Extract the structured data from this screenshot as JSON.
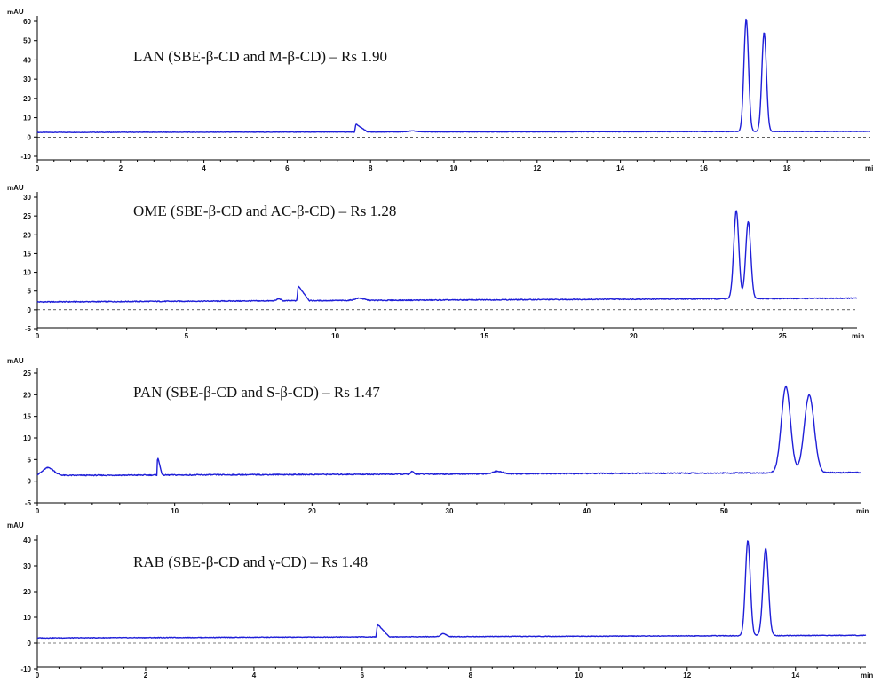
{
  "colors": {
    "trace": "#1f1fd8",
    "axis": "#000000"
  },
  "chart_data": [
    {
      "type": "line",
      "title": "LAN (SBE-β-CD and M-β-CD) – Rs 1.90",
      "ylabel": "mAU",
      "xlabel": "min",
      "xlim": [
        0,
        20
      ],
      "ylim": [
        -10,
        65
      ],
      "xticks": [
        0,
        2,
        4,
        6,
        8,
        10,
        12,
        14,
        16,
        18
      ],
      "yticks": [
        -10,
        0,
        10,
        20,
        30,
        40,
        50,
        60
      ],
      "baseline": {
        "start": 2.4,
        "end": 2.9
      },
      "peaks": [
        {
          "rt": 7.65,
          "height": 4.2,
          "kind": "sharkfin",
          "width": 0.28
        },
        {
          "rt": 9.0,
          "height": 0.5,
          "kind": "gauss",
          "width": 0.12
        },
        {
          "rt": 17.02,
          "height": 58.5,
          "kind": "gauss",
          "width": 0.055
        },
        {
          "rt": 17.45,
          "height": 51.5,
          "kind": "gauss",
          "width": 0.055
        }
      ],
      "grid": false
    },
    {
      "type": "line",
      "title": "OME (SBE-β-CD and AC-β-CD) – Rs 1.28",
      "ylabel": "mAU",
      "xlabel": "min",
      "xlim": [
        0,
        27.5
      ],
      "ylim": [
        -5,
        30
      ],
      "xticks": [
        0,
        5,
        10,
        15,
        20,
        25
      ],
      "yticks": [
        -5,
        0,
        5,
        10,
        15,
        20,
        25,
        30
      ],
      "baseline": {
        "start": 2.1,
        "end": 3.1
      },
      "peaks": [
        {
          "rt": 8.1,
          "height": 0.6,
          "kind": "gauss",
          "width": 0.06
        },
        {
          "rt": 8.75,
          "height": 4.0,
          "kind": "sharkfin",
          "width": 0.38
        },
        {
          "rt": 10.8,
          "height": 0.6,
          "kind": "gauss",
          "width": 0.15
        },
        {
          "rt": 23.45,
          "height": 23.5,
          "kind": "gauss",
          "width": 0.085
        },
        {
          "rt": 23.85,
          "height": 20.5,
          "kind": "gauss",
          "width": 0.085
        }
      ],
      "grid": false
    },
    {
      "type": "line",
      "title": "PAN (SBE-β-CD and S-β-CD) – Rs 1.47",
      "ylabel": "mAU",
      "xlabel": "min",
      "xlim": [
        0,
        60
      ],
      "ylim": [
        -5,
        27
      ],
      "xticks": [
        0,
        10,
        20,
        30,
        40,
        50
      ],
      "yticks": [
        -5,
        0,
        5,
        10,
        15,
        20,
        25
      ],
      "baseline": {
        "start": 1.3,
        "end": 2.0
      },
      "peaks": [
        {
          "rt": 0.8,
          "height": 1.8,
          "kind": "gauss",
          "width": 0.4
        },
        {
          "rt": 8.75,
          "height": 4.3,
          "kind": "sharkfin",
          "width": 0.35
        },
        {
          "rt": 27.3,
          "height": 0.6,
          "kind": "gauss",
          "width": 0.1
        },
        {
          "rt": 33.5,
          "height": 0.6,
          "kind": "gauss",
          "width": 0.35
        },
        {
          "rt": 54.5,
          "height": 20.0,
          "kind": "gauss",
          "width": 0.33
        },
        {
          "rt": 56.2,
          "height": 18.0,
          "kind": "gauss",
          "width": 0.36
        }
      ],
      "grid": false
    },
    {
      "type": "line",
      "title": "RAB (SBE-β-CD and γ-CD) – Rs 1.48",
      "ylabel": "mAU",
      "xlabel": "min",
      "xlim": [
        0,
        15.3
      ],
      "ylim": [
        -10,
        45
      ],
      "xticks": [
        0,
        2,
        4,
        6,
        8,
        10,
        12,
        14
      ],
      "yticks": [
        -10,
        0,
        10,
        20,
        30,
        40
      ],
      "baseline": {
        "start": 2.0,
        "end": 3.0
      },
      "peaks": [
        {
          "rt": 6.28,
          "height": 5.0,
          "kind": "sharkfin",
          "width": 0.22
        },
        {
          "rt": 7.5,
          "height": 1.2,
          "kind": "gauss",
          "width": 0.05
        },
        {
          "rt": 13.12,
          "height": 37.0,
          "kind": "gauss",
          "width": 0.045
        },
        {
          "rt": 13.45,
          "height": 34.0,
          "kind": "gauss",
          "width": 0.05
        }
      ],
      "grid": false
    }
  ]
}
